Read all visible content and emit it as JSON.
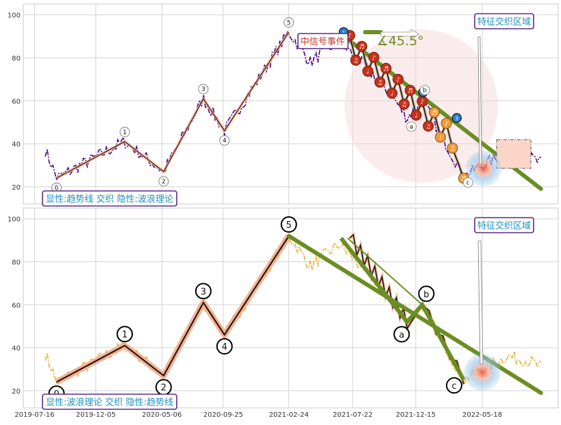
{
  "chart_data": [
    {
      "type": "line",
      "panel": "top",
      "title": "",
      "xlabel": "",
      "ylabel": "",
      "ylim": [
        12,
        105
      ],
      "yticks": [
        20,
        40,
        60,
        80,
        100
      ],
      "grid": true,
      "price_series_color": "#4b0082",
      "wave_points": [
        {
          "label": "0",
          "date": "2019-09-05",
          "value": 24
        },
        {
          "label": "1",
          "date": "2020-02-10",
          "value": 41
        },
        {
          "label": "2",
          "date": "2020-05-10",
          "value": 27
        },
        {
          "label": "3",
          "date": "2020-08-10",
          "value": 61
        },
        {
          "label": "4",
          "date": "2020-09-28",
          "value": 46
        },
        {
          "label": "5",
          "date": "2021-02-24",
          "value": 92
        }
      ],
      "correction_labels": [
        "a",
        "b",
        "c"
      ],
      "trend_line": {
        "start": {
          "date": "2021-06-25",
          "value": 91
        },
        "end": {
          "date": "2022-10-01",
          "value": 19
        },
        "color": "#6b8e23"
      },
      "angle_label": "∡45.5°",
      "event_label": "中信号事件",
      "feature_label": "特征交织区域",
      "caption": "显性:趋势线 交织 隐性:波浪理论",
      "marker_numbers": [
        "1",
        "2",
        "3"
      ]
    },
    {
      "type": "line",
      "panel": "bottom",
      "title": "",
      "xlabel": "",
      "ylabel": "",
      "ylim": [
        12,
        105
      ],
      "yticks": [
        20,
        40,
        60,
        80,
        100
      ],
      "grid": true,
      "price_series_color": "#e8b23a",
      "x_tick_labels": [
        "2019-07-16",
        "2019-12-05",
        "2020-05-06",
        "2020-09-25",
        "2021-02-24",
        "2021-07-22",
        "2021-12-15",
        "2022-05-18"
      ],
      "wave_points": [
        {
          "label": "0",
          "date": "2019-09-05",
          "value": 24
        },
        {
          "label": "1",
          "date": "2020-02-10",
          "value": 41
        },
        {
          "label": "2",
          "date": "2020-05-10",
          "value": 27
        },
        {
          "label": "3",
          "date": "2020-08-10",
          "value": 61
        },
        {
          "label": "4",
          "date": "2020-09-28",
          "value": 46
        },
        {
          "label": "5",
          "date": "2021-02-24",
          "value": 92
        }
      ],
      "correction_points": [
        {
          "label": "a",
          "date": "2021-11-25",
          "value": 52
        },
        {
          "label": "b",
          "date": "2021-12-30",
          "value": 60
        },
        {
          "label": "c",
          "date": "2022-04-05",
          "value": 25
        }
      ],
      "trend_line": {
        "start": {
          "date": "2021-02-24",
          "value": 92
        },
        "end": {
          "date": "2022-10-01",
          "value": 19
        },
        "color": "#6b8e23"
      },
      "feature_label": "特征交织区域",
      "caption": "显性:波浪理论 交织 隐性:趋势线"
    }
  ]
}
